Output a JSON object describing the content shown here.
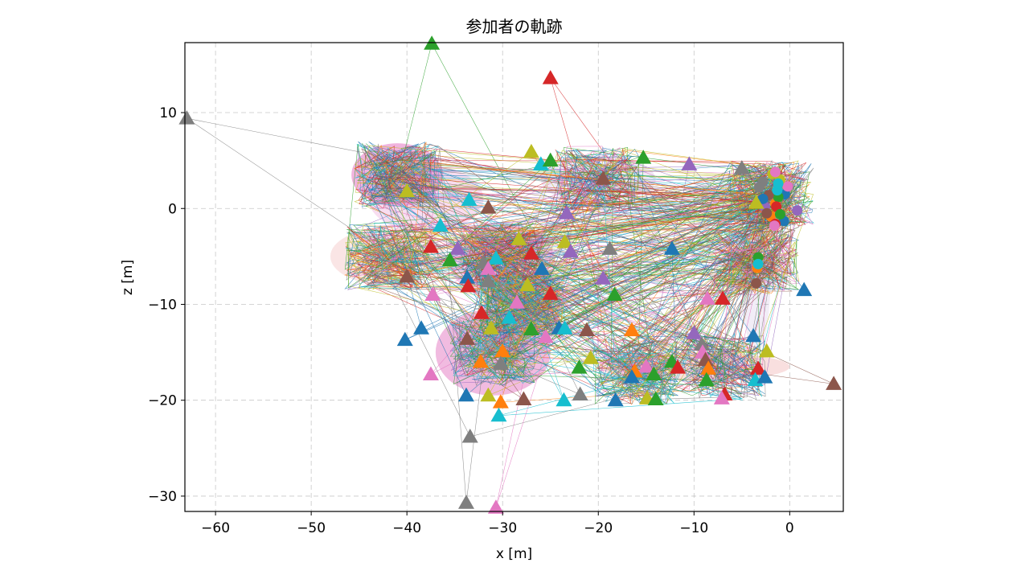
{
  "chart_data": {
    "type": "scatter",
    "title": "参加者の軌跡",
    "xlabel": "x [m]",
    "ylabel": "z [m]",
    "xlim": [
      -63.2,
      5.6
    ],
    "ylim": [
      -31.6,
      17.3
    ],
    "xticks": [
      -60,
      -50,
      -40,
      -30,
      -20,
      -10,
      0
    ],
    "yticks": [
      -30,
      -20,
      -10,
      0,
      10
    ],
    "xtick_labels": [
      "−60",
      "−50",
      "−40",
      "−30",
      "−20",
      "−10",
      "0"
    ],
    "ytick_labels": [
      "−30",
      "−20",
      "−10",
      "0",
      "10"
    ],
    "grid": true,
    "legend": "none",
    "palette": [
      "#1f77b4",
      "#ff7f0e",
      "#2ca02c",
      "#d62728",
      "#9467bd",
      "#8c564b",
      "#e377c2",
      "#7f7f7f",
      "#bcbd22",
      "#17becf"
    ],
    "start_markers": [
      {
        "x": -0.5,
        "z": 1.5,
        "c": 0
      },
      {
        "x": -1.5,
        "z": 0.5,
        "c": 1
      },
      {
        "x": -1.2,
        "z": 1.2,
        "c": 2
      },
      {
        "x": -1.4,
        "z": 0.2,
        "c": 3
      },
      {
        "x": 0.8,
        "z": -0.2,
        "c": 4
      },
      {
        "x": -2.2,
        "z": 1.4,
        "c": 5
      },
      {
        "x": -0.2,
        "z": 2.3,
        "c": 6
      },
      {
        "x": -2.8,
        "z": 2.8,
        "c": 7
      },
      {
        "x": -1.0,
        "z": 3.0,
        "c": 8
      },
      {
        "x": -1.3,
        "z": 1.9,
        "c": 9
      },
      {
        "x": -0.6,
        "z": -1.3,
        "c": 0
      },
      {
        "x": -2.0,
        "z": -0.8,
        "c": 1
      },
      {
        "x": -1.0,
        "z": -0.6,
        "c": 2
      },
      {
        "x": -1.5,
        "z": -1.6,
        "c": 3
      },
      {
        "x": -2.6,
        "z": 0.2,
        "c": 4
      },
      {
        "x": -2.4,
        "z": -0.5,
        "c": 5
      },
      {
        "x": -1.6,
        "z": -1.8,
        "c": 6
      },
      {
        "x": -3.2,
        "z": 2.2,
        "c": 7
      },
      {
        "x": -1.8,
        "z": 3.6,
        "c": 8
      },
      {
        "x": -1.2,
        "z": 2.6,
        "c": 9
      },
      {
        "x": -3.3,
        "z": -5.1,
        "c": 2
      },
      {
        "x": -3.4,
        "z": -6.2,
        "c": 1
      },
      {
        "x": -3.5,
        "z": -7.8,
        "c": 5
      },
      {
        "x": -3.3,
        "z": -5.8,
        "c": 9
      },
      {
        "x": -1.5,
        "z": 3.8,
        "c": 6
      },
      {
        "x": -2.8,
        "z": 1.0,
        "c": 0
      }
    ],
    "end_markers": [
      {
        "x": -37.4,
        "z": 17.2,
        "c": 2
      },
      {
        "x": -25.0,
        "z": 13.6,
        "c": 3
      },
      {
        "x": -63.0,
        "z": 9.4,
        "c": 7
      },
      {
        "x": -5.0,
        "z": 4.2,
        "c": 7
      },
      {
        "x": -10.5,
        "z": 4.6,
        "c": 4
      },
      {
        "x": -15.3,
        "z": 5.3,
        "c": 2
      },
      {
        "x": -19.5,
        "z": 3.1,
        "c": 5
      },
      {
        "x": -3.5,
        "z": 0.6,
        "c": 8
      },
      {
        "x": -40.0,
        "z": 1.8,
        "c": 8
      },
      {
        "x": -33.5,
        "z": 0.9,
        "c": 9
      },
      {
        "x": -31.5,
        "z": 0.1,
        "c": 5
      },
      {
        "x": -23.3,
        "z": -0.5,
        "c": 4
      },
      {
        "x": -36.5,
        "z": -1.8,
        "c": 9
      },
      {
        "x": -28.3,
        "z": -3.2,
        "c": 8
      },
      {
        "x": -23.5,
        "z": -3.5,
        "c": 8
      },
      {
        "x": -37.5,
        "z": -4.0,
        "c": 3
      },
      {
        "x": -34.7,
        "z": -4.2,
        "c": 4
      },
      {
        "x": -18.8,
        "z": -4.2,
        "c": 7
      },
      {
        "x": -12.3,
        "z": -4.2,
        "c": 0
      },
      {
        "x": -22.9,
        "z": -4.5,
        "c": 4
      },
      {
        "x": -27.0,
        "z": -4.7,
        "c": 3
      },
      {
        "x": -30.7,
        "z": -5.2,
        "c": 9
      },
      {
        "x": -35.5,
        "z": -5.4,
        "c": 2
      },
      {
        "x": -32.0,
        "z": -5.7,
        "c": 7
      },
      {
        "x": -31.5,
        "z": -6.3,
        "c": 6
      },
      {
        "x": -25.9,
        "z": -6.3,
        "c": 0
      },
      {
        "x": -33.7,
        "z": -7.2,
        "c": 0
      },
      {
        "x": -40.0,
        "z": -7.1,
        "c": 5
      },
      {
        "x": -31.5,
        "z": -7.6,
        "c": 7
      },
      {
        "x": -33.6,
        "z": -8.1,
        "c": 3
      },
      {
        "x": -19.5,
        "z": -7.3,
        "c": 4
      },
      {
        "x": -27.4,
        "z": -8.0,
        "c": 8
      },
      {
        "x": -25.0,
        "z": -8.9,
        "c": 3
      },
      {
        "x": -18.3,
        "z": -9.0,
        "c": 2
      },
      {
        "x": -37.3,
        "z": -9.0,
        "c": 6
      },
      {
        "x": -8.6,
        "z": -9.4,
        "c": 6
      },
      {
        "x": -7.0,
        "z": -9.4,
        "c": 3
      },
      {
        "x": 1.5,
        "z": -8.5,
        "c": 0
      },
      {
        "x": -28.5,
        "z": -9.8,
        "c": 6
      },
      {
        "x": -32.2,
        "z": -10.9,
        "c": 3
      },
      {
        "x": -29.3,
        "z": -11.4,
        "c": 9
      },
      {
        "x": -38.5,
        "z": -12.5,
        "c": 0
      },
      {
        "x": -31.2,
        "z": -12.5,
        "c": 8
      },
      {
        "x": -27.0,
        "z": -12.6,
        "c": 2
      },
      {
        "x": -24.1,
        "z": -12.5,
        "c": 0
      },
      {
        "x": -23.5,
        "z": -12.5,
        "c": 9
      },
      {
        "x": -21.2,
        "z": -12.7,
        "c": 5
      },
      {
        "x": -16.5,
        "z": -12.7,
        "c": 1
      },
      {
        "x": -10.0,
        "z": -13.0,
        "c": 4
      },
      {
        "x": -3.8,
        "z": -13.3,
        "c": 0
      },
      {
        "x": -40.2,
        "z": -13.7,
        "c": 0
      },
      {
        "x": -33.7,
        "z": -13.6,
        "c": 5
      },
      {
        "x": -25.5,
        "z": -13.4,
        "c": 6
      },
      {
        "x": -9.2,
        "z": -14.2,
        "c": 7
      },
      {
        "x": -30.0,
        "z": -14.9,
        "c": 1
      },
      {
        "x": -9.1,
        "z": -15.0,
        "c": 6
      },
      {
        "x": -2.4,
        "z": -14.9,
        "c": 8
      },
      {
        "x": -20.8,
        "z": -15.6,
        "c": 8
      },
      {
        "x": -12.3,
        "z": -16.0,
        "c": 2
      },
      {
        "x": -8.8,
        "z": -15.8,
        "c": 5
      },
      {
        "x": -32.3,
        "z": -16.0,
        "c": 1
      },
      {
        "x": -30.2,
        "z": -16.2,
        "c": 7
      },
      {
        "x": -22.0,
        "z": -16.6,
        "c": 2
      },
      {
        "x": -15.0,
        "z": -16.5,
        "c": 6
      },
      {
        "x": -11.7,
        "z": -16.6,
        "c": 3
      },
      {
        "x": -8.5,
        "z": -16.7,
        "c": 1
      },
      {
        "x": -3.3,
        "z": -16.7,
        "c": 3
      },
      {
        "x": -37.5,
        "z": -17.3,
        "c": 6
      },
      {
        "x": -16.2,
        "z": -17.0,
        "c": 1
      },
      {
        "x": -14.2,
        "z": -17.3,
        "c": 2
      },
      {
        "x": -8.7,
        "z": -17.9,
        "c": 2
      },
      {
        "x": -3.6,
        "z": -17.9,
        "c": 9
      },
      {
        "x": -2.6,
        "z": -17.6,
        "c": 0
      },
      {
        "x": -16.5,
        "z": -17.6,
        "c": 0
      },
      {
        "x": 4.6,
        "z": -18.3,
        "c": 5
      },
      {
        "x": -33.8,
        "z": -19.5,
        "c": 0
      },
      {
        "x": -31.5,
        "z": -19.5,
        "c": 8
      },
      {
        "x": -6.8,
        "z": -19.4,
        "c": 3
      },
      {
        "x": -21.9,
        "z": -19.4,
        "c": 7
      },
      {
        "x": -27.8,
        "z": -19.9,
        "c": 5
      },
      {
        "x": -30.2,
        "z": -20.2,
        "c": 1
      },
      {
        "x": -23.6,
        "z": -20.0,
        "c": 9
      },
      {
        "x": -18.2,
        "z": -20.0,
        "c": 0
      },
      {
        "x": -14.9,
        "z": -19.8,
        "c": 8
      },
      {
        "x": -14.0,
        "z": -19.9,
        "c": 2
      },
      {
        "x": -7.1,
        "z": -19.8,
        "c": 6
      },
      {
        "x": -30.4,
        "z": -21.6,
        "c": 9
      },
      {
        "x": -33.4,
        "z": -23.8,
        "c": 7
      },
      {
        "x": -33.8,
        "z": -30.7,
        "c": 7
      },
      {
        "x": -30.7,
        "z": -31.2,
        "c": 6
      },
      {
        "x": -26.0,
        "z": 4.6,
        "c": 9
      },
      {
        "x": -27.0,
        "z": 5.9,
        "c": 8
      },
      {
        "x": -25.0,
        "z": 5.0,
        "c": 2
      }
    ],
    "density_regions": [
      {
        "x": -41.0,
        "z": 3.5,
        "rx": 4.8,
        "rz": 3.3,
        "c": 6,
        "a": 0.55
      },
      {
        "x": -30.0,
        "z": -5.5,
        "rx": 5.5,
        "rz": 4.0,
        "c": 6,
        "a": 0.35
      },
      {
        "x": -31.0,
        "z": -15.0,
        "rx": 6.0,
        "rz": 4.5,
        "c": 6,
        "a": 0.5
      },
      {
        "x": -28.0,
        "z": -10.5,
        "rx": 4.0,
        "rz": 3.0,
        "c": 6,
        "a": 0.35
      },
      {
        "x": -38.0,
        "z": 1.0,
        "rx": 6.0,
        "rz": 3.5,
        "c": 6,
        "a": 0.25
      },
      {
        "x": -20.0,
        "z": 3.0,
        "rx": 6.0,
        "rz": 2.5,
        "c": 4,
        "a": 0.15
      },
      {
        "x": -10.0,
        "z": -16.5,
        "rx": 10.0,
        "rz": 1.5,
        "c": 3,
        "a": 0.15
      },
      {
        "x": -3.5,
        "z": -7.0,
        "rx": 1.5,
        "rz": 8.0,
        "c": 4,
        "a": 0.12
      },
      {
        "x": -42.0,
        "z": -5.0,
        "rx": 6.0,
        "rz": 3.0,
        "c": 3,
        "a": 0.12
      }
    ],
    "trajectory_hubs": [
      {
        "x": -2.0,
        "z": 1.5
      },
      {
        "x": -3.5,
        "z": -5.5
      },
      {
        "x": -41.0,
        "z": 3.5
      },
      {
        "x": -30.0,
        "z": -5.0
      },
      {
        "x": -31.0,
        "z": -15.0
      },
      {
        "x": -16.0,
        "z": -17.0
      },
      {
        "x": -20.0,
        "z": 3.0
      },
      {
        "x": -42.0,
        "z": -5.0
      },
      {
        "x": -7.0,
        "z": -16.5
      },
      {
        "x": -28.0,
        "z": -10.0
      }
    ]
  }
}
